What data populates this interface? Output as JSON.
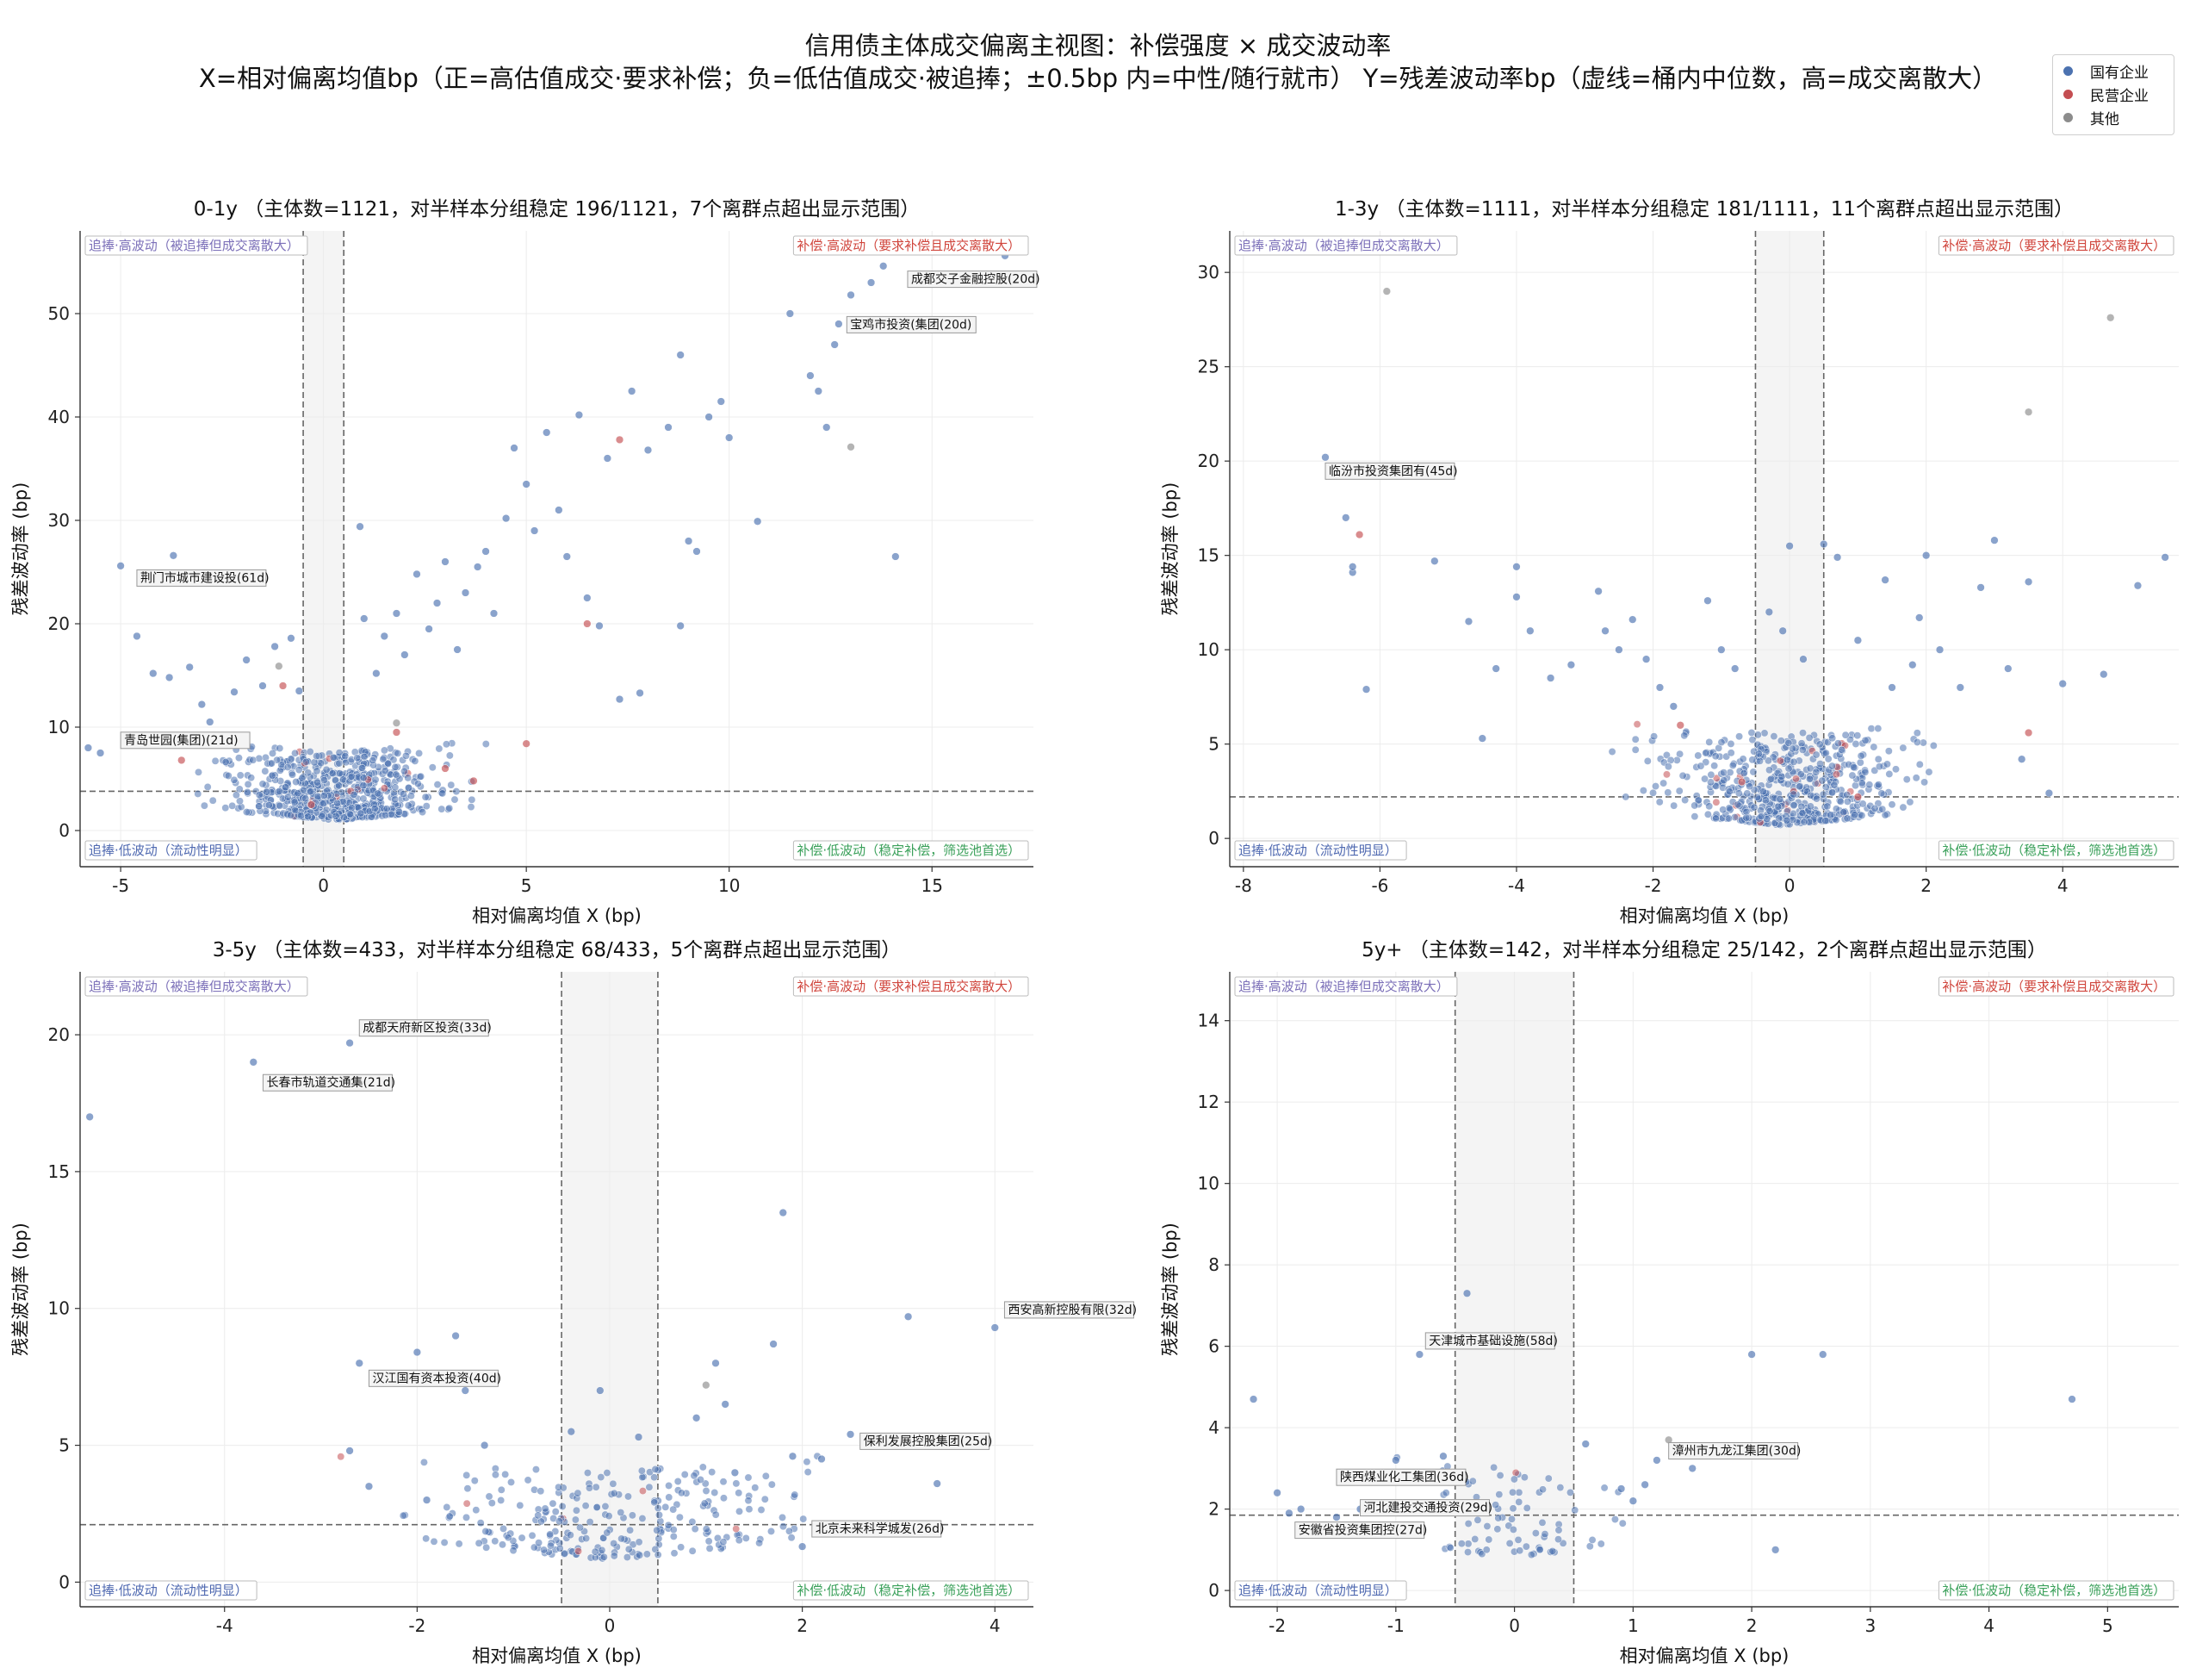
{
  "figure": {
    "title": "信用债主体成交偏离主视图：补偿强度 × 成交波动率",
    "subtitle": "X=相对偏离均值bp（正=高估值成交·要求补偿；负=低估值成交·被追捧；±0.5bp 内=中性/随行就市）  Y=残差波动率bp（虚线=桶内中位数，高=成交离散大）"
  },
  "legend": [
    {
      "label": "国有企业",
      "color": "#4c72b0"
    },
    {
      "label": "民营企业",
      "color": "#c44e52"
    },
    {
      "label": "其他",
      "color": "#8c8c8c"
    }
  ],
  "quadrant_labels": {
    "top_left": "追捧·高波动（被追捧但成交离散大）",
    "top_right": "补偿·高波动（要求补偿且成交离散大）",
    "bottom_left": "追捧·低波动（流动性明显）",
    "bottom_right": "补偿·低波动（稳定补偿，筛选池首选）"
  },
  "chart_data": [
    {
      "type": "scatter",
      "title": "0-1y （主体数=1121，对半样本分组稳定 196/1121，7个离群点超出显示范围）",
      "xlabel": "相对偏离均值 X (bp)",
      "ylabel": "残差波动率 (bp)",
      "xlim": [
        -6,
        17.5
      ],
      "ylim": [
        -3.5,
        58
      ],
      "xticks": [
        -5,
        0,
        5,
        10,
        15
      ],
      "yticks": [
        0,
        10,
        20,
        30,
        40,
        50
      ],
      "neutral_band": [
        -0.5,
        0.5
      ],
      "median_y": 3.8,
      "grid": true,
      "cluster": {
        "n": 650,
        "seed": 11,
        "x_mean": 0.3,
        "x_sd": 1.2,
        "y_min": 1.0,
        "y_max": 7.5
      },
      "series": [
        {
          "name": "国有企业",
          "color": "#4c72b0",
          "points": [
            [
              -5.8,
              8.0
            ],
            [
              -5.5,
              7.5
            ],
            [
              -5.0,
              25.6
            ],
            [
              -4.6,
              18.8
            ],
            [
              -4.2,
              15.2
            ],
            [
              -3.8,
              14.8
            ],
            [
              -3.7,
              26.6
            ],
            [
              -3.3,
              15.8
            ],
            [
              -3.0,
              12.2
            ],
            [
              -2.8,
              10.5
            ],
            [
              -2.5,
              9.0
            ],
            [
              -2.2,
              13.4
            ],
            [
              -1.9,
              16.5
            ],
            [
              -1.5,
              14.0
            ],
            [
              -1.2,
              17.8
            ],
            [
              -0.8,
              18.6
            ],
            [
              -0.6,
              13.5
            ],
            [
              0.9,
              29.4
            ],
            [
              1.0,
              20.5
            ],
            [
              1.3,
              15.2
            ],
            [
              1.5,
              18.8
            ],
            [
              1.8,
              21.0
            ],
            [
              2.0,
              17.0
            ],
            [
              2.3,
              24.8
            ],
            [
              2.6,
              19.5
            ],
            [
              2.8,
              22.0
            ],
            [
              3.0,
              26.0
            ],
            [
              3.3,
              17.5
            ],
            [
              3.5,
              23.0
            ],
            [
              3.8,
              25.5
            ],
            [
              4.0,
              27.0
            ],
            [
              4.2,
              21.0
            ],
            [
              4.5,
              30.2
            ],
            [
              4.7,
              37.0
            ],
            [
              5.0,
              33.5
            ],
            [
              5.2,
              29.0
            ],
            [
              5.5,
              38.5
            ],
            [
              5.8,
              31.0
            ],
            [
              6.0,
              26.5
            ],
            [
              6.3,
              40.2
            ],
            [
              6.5,
              22.5
            ],
            [
              6.8,
              19.8
            ],
            [
              7.0,
              36.0
            ],
            [
              7.3,
              12.7
            ],
            [
              7.6,
              42.5
            ],
            [
              7.8,
              13.3
            ],
            [
              8.0,
              36.8
            ],
            [
              8.5,
              39.0
            ],
            [
              8.8,
              46.0
            ],
            [
              8.8,
              19.8
            ],
            [
              9.0,
              28.0
            ],
            [
              9.2,
              27.0
            ],
            [
              9.5,
              40.0
            ],
            [
              9.8,
              41.5
            ],
            [
              10.0,
              38.0
            ],
            [
              10.7,
              29.9
            ],
            [
              11.5,
              50.0
            ],
            [
              12.0,
              44.0
            ],
            [
              12.2,
              42.5
            ],
            [
              12.4,
              39.0
            ],
            [
              12.6,
              47.0
            ],
            [
              12.7,
              49.0
            ],
            [
              13.0,
              51.8
            ],
            [
              13.5,
              53.0
            ],
            [
              13.8,
              54.6
            ],
            [
              14.1,
              26.5
            ],
            [
              16.8,
              55.6
            ]
          ]
        },
        {
          "name": "民营企业",
          "color": "#c44e52",
          "points": [
            [
              -3.5,
              6.8
            ],
            [
              -1.0,
              14.0
            ],
            [
              -0.3,
              2.5
            ],
            [
              1.8,
              9.5
            ],
            [
              3.0,
              6.0
            ],
            [
              3.7,
              4.8
            ],
            [
              5.0,
              8.4
            ],
            [
              6.5,
              20.0
            ],
            [
              7.3,
              37.8
            ]
          ]
        },
        {
          "name": "其他",
          "color": "#8c8c8c",
          "points": [
            [
              -1.1,
              15.9
            ],
            [
              1.8,
              10.4
            ],
            [
              13.0,
              37.1
            ]
          ]
        }
      ],
      "annotations": [
        {
          "text": "成都交子金融控股(20d)",
          "x": 14.4,
          "y": 53.2
        },
        {
          "text": "宝鸡市投资(集团(20d)",
          "x": 12.9,
          "y": 48.8
        },
        {
          "text": "荆门市城市建设投(61d)",
          "x": -4.6,
          "y": 24.3
        },
        {
          "text": "青岛世园(集团)(21d)",
          "x": -5.0,
          "y": 8.6
        }
      ]
    },
    {
      "type": "scatter",
      "title": "1-3y （主体数=1111，对半样本分组稳定 181/1111，11个离群点超出显示范围）",
      "xlabel": "相对偏离均值 X (bp)",
      "ylabel": "残差波动率 (bp)",
      "xlim": [
        -8.2,
        5.7
      ],
      "ylim": [
        -1.5,
        32.2
      ],
      "xticks": [
        -8,
        -6,
        -4,
        -2,
        0,
        2,
        4
      ],
      "yticks": [
        0,
        5,
        10,
        15,
        20,
        25,
        30
      ],
      "neutral_band": [
        -0.5,
        0.5
      ],
      "median_y": 2.2,
      "grid": true,
      "cluster": {
        "n": 560,
        "seed": 23,
        "x_mean": -0.1,
        "x_sd": 0.85,
        "y_min": 0.7,
        "y_max": 5.5
      },
      "series": [
        {
          "name": "国有企业",
          "color": "#4c72b0",
          "points": [
            [
              -6.8,
              20.2
            ],
            [
              -6.5,
              17.0
            ],
            [
              -6.4,
              14.1
            ],
            [
              -6.4,
              14.4
            ],
            [
              -6.2,
              7.9
            ],
            [
              -5.2,
              14.7
            ],
            [
              -4.7,
              11.5
            ],
            [
              -4.5,
              5.3
            ],
            [
              -4.3,
              9.0
            ],
            [
              -4.0,
              14.4
            ],
            [
              -4.0,
              12.8
            ],
            [
              -3.8,
              11.0
            ],
            [
              -3.5,
              8.5
            ],
            [
              -3.2,
              9.2
            ],
            [
              -2.8,
              13.1
            ],
            [
              -2.7,
              11.0
            ],
            [
              -2.5,
              10.0
            ],
            [
              -2.3,
              11.6
            ],
            [
              -2.1,
              9.5
            ],
            [
              -1.9,
              8.0
            ],
            [
              -1.7,
              7.0
            ],
            [
              -1.2,
              12.6
            ],
            [
              -1.0,
              10.0
            ],
            [
              -0.8,
              9.0
            ],
            [
              -0.3,
              12.0
            ],
            [
              -0.1,
              11.0
            ],
            [
              0.0,
              15.5
            ],
            [
              0.2,
              9.5
            ],
            [
              0.5,
              15.6
            ],
            [
              0.7,
              14.9
            ],
            [
              1.0,
              10.5
            ],
            [
              1.4,
              13.7
            ],
            [
              1.5,
              8.0
            ],
            [
              1.8,
              9.2
            ],
            [
              1.9,
              11.7
            ],
            [
              2.0,
              15.0
            ],
            [
              2.2,
              10.0
            ],
            [
              2.5,
              8.0
            ],
            [
              2.8,
              13.3
            ],
            [
              3.0,
              15.8
            ],
            [
              3.2,
              9.0
            ],
            [
              3.4,
              4.2
            ],
            [
              3.5,
              13.6
            ],
            [
              3.8,
              2.4
            ],
            [
              4.0,
              8.2
            ],
            [
              4.6,
              8.7
            ],
            [
              5.1,
              13.4
            ],
            [
              5.5,
              14.9
            ]
          ]
        },
        {
          "name": "民营企业",
          "color": "#c44e52",
          "points": [
            [
              -6.3,
              16.1
            ],
            [
              -1.6,
              6.0
            ],
            [
              -0.7,
              3.0
            ],
            [
              1.0,
              2.2
            ],
            [
              3.5,
              5.6
            ]
          ]
        },
        {
          "name": "其他",
          "color": "#8c8c8c",
          "points": [
            [
              3.5,
              22.6
            ],
            [
              4.7,
              27.6
            ],
            [
              -5.9,
              29.0
            ]
          ]
        }
      ],
      "annotations": [
        {
          "text": "临汾市投资集团有(45d)",
          "x": -6.8,
          "y": 19.4
        }
      ]
    },
    {
      "type": "scatter",
      "title": "3-5y （主体数=433，对半样本分组稳定 68/433，5个离群点超出显示范围）",
      "xlabel": "相对偏离均值 X (bp)",
      "ylabel": "残差波动率 (bp)",
      "xlim": [
        -5.5,
        4.4
      ],
      "ylim": [
        -0.9,
        22.3
      ],
      "xticks": [
        -4,
        -2,
        0,
        2,
        4
      ],
      "yticks": [
        0,
        5,
        10,
        15,
        20
      ],
      "neutral_band": [
        -0.5,
        0.5
      ],
      "median_y": 2.1,
      "grid": true,
      "cluster": {
        "n": 260,
        "seed": 37,
        "x_mean": 0.0,
        "x_sd": 0.9,
        "y_min": 0.8,
        "y_max": 4.0
      },
      "series": [
        {
          "name": "国有企业",
          "color": "#4c72b0",
          "points": [
            [
              -5.4,
              17.0
            ],
            [
              -3.7,
              19.0
            ],
            [
              -2.7,
              19.7
            ],
            [
              -2.6,
              8.0
            ],
            [
              -2.7,
              4.8
            ],
            [
              -2.5,
              3.5
            ],
            [
              -2.0,
              8.4
            ],
            [
              -1.9,
              3.0
            ],
            [
              -1.6,
              9.0
            ],
            [
              -1.5,
              7.0
            ],
            [
              -1.3,
              5.0
            ],
            [
              -0.4,
              5.5
            ],
            [
              -0.1,
              7.0
            ],
            [
              0.3,
              5.3
            ],
            [
              0.9,
              6.0
            ],
            [
              1.1,
              8.0
            ],
            [
              1.2,
              6.5
            ],
            [
              1.3,
              4.0
            ],
            [
              1.7,
              8.7
            ],
            [
              1.8,
              13.5
            ],
            [
              1.9,
              4.6
            ],
            [
              2.0,
              1.3
            ],
            [
              2.2,
              4.5
            ],
            [
              2.5,
              5.4
            ],
            [
              2.7,
              5.0
            ],
            [
              3.1,
              9.7
            ],
            [
              3.4,
              3.6
            ],
            [
              4.0,
              9.3
            ]
          ]
        },
        {
          "name": "民营企业",
          "color": "#c44e52",
          "points": []
        },
        {
          "name": "其他",
          "color": "#8c8c8c",
          "points": [
            [
              1.0,
              7.2
            ]
          ]
        }
      ],
      "annotations": [
        {
          "text": "成都天府新区投资(33d)",
          "x": -2.6,
          "y": 20.2
        },
        {
          "text": "长春市轨道交通集(21d)",
          "x": -3.6,
          "y": 18.2
        },
        {
          "text": "汉江国有资本投资(40d)",
          "x": -2.5,
          "y": 7.4
        },
        {
          "text": "西安高新控股有限(32d)",
          "x": 4.1,
          "y": 9.9
        },
        {
          "text": "保利发展控股集团(25d)",
          "x": 2.6,
          "y": 5.1
        },
        {
          "text": "北京未来科学城发(26d)",
          "x": 2.1,
          "y": 1.9
        }
      ]
    },
    {
      "type": "scatter",
      "title": "5y+ （主体数=142，对半样本分组稳定 25/142，2个离群点超出显示范围）",
      "xlabel": "相对偏离均值 X (bp)",
      "ylabel": "残差波动率 (bp)",
      "xlim": [
        -2.4,
        5.6
      ],
      "ylim": [
        -0.4,
        15.2
      ],
      "xticks": [
        -2,
        -1,
        0,
        1,
        2,
        3,
        4,
        5
      ],
      "yticks": [
        0,
        2,
        4,
        6,
        8,
        10,
        12,
        14
      ],
      "neutral_band": [
        -0.5,
        0.5
      ],
      "median_y": 1.85,
      "grid": true,
      "cluster": {
        "n": 80,
        "seed": 53,
        "x_mean": 0.0,
        "x_sd": 0.45,
        "y_min": 0.8,
        "y_max": 3.0
      },
      "series": [
        {
          "name": "国有企业",
          "color": "#4c72b0",
          "points": [
            [
              -2.2,
              4.7
            ],
            [
              -2.0,
              2.4
            ],
            [
              -1.9,
              1.9
            ],
            [
              -1.8,
              2.0
            ],
            [
              -1.5,
              1.8
            ],
            [
              -1.3,
              2.0
            ],
            [
              -1.0,
              3.2
            ],
            [
              -0.8,
              5.8
            ],
            [
              -0.6,
              3.3
            ],
            [
              -0.4,
              7.3
            ],
            [
              0.6,
              3.6
            ],
            [
              0.9,
              2.5
            ],
            [
              1.0,
              2.2
            ],
            [
              1.1,
              2.6
            ],
            [
              1.2,
              3.2
            ],
            [
              1.5,
              3.0
            ],
            [
              2.0,
              5.8
            ],
            [
              2.2,
              1.0
            ],
            [
              2.6,
              5.8
            ],
            [
              4.7,
              4.7
            ]
          ]
        },
        {
          "name": "民营企业",
          "color": "#c44e52",
          "points": []
        },
        {
          "name": "其他",
          "color": "#8c8c8c",
          "points": [
            [
              1.3,
              3.7
            ]
          ]
        }
      ],
      "annotations": [
        {
          "text": "天津城市基础设施(58d)",
          "x": -0.75,
          "y": 6.1
        },
        {
          "text": "漳州市九龙江集团(30d)",
          "x": 1.3,
          "y": 3.4
        },
        {
          "text": "陕西煤业化工集团(36d)",
          "x": -1.5,
          "y": 2.75
        },
        {
          "text": "河北建投交通投资(29d)",
          "x": -1.3,
          "y": 2.0
        },
        {
          "text": "安徽省投资集团控(27d)",
          "x": -1.85,
          "y": 1.45
        }
      ]
    }
  ]
}
